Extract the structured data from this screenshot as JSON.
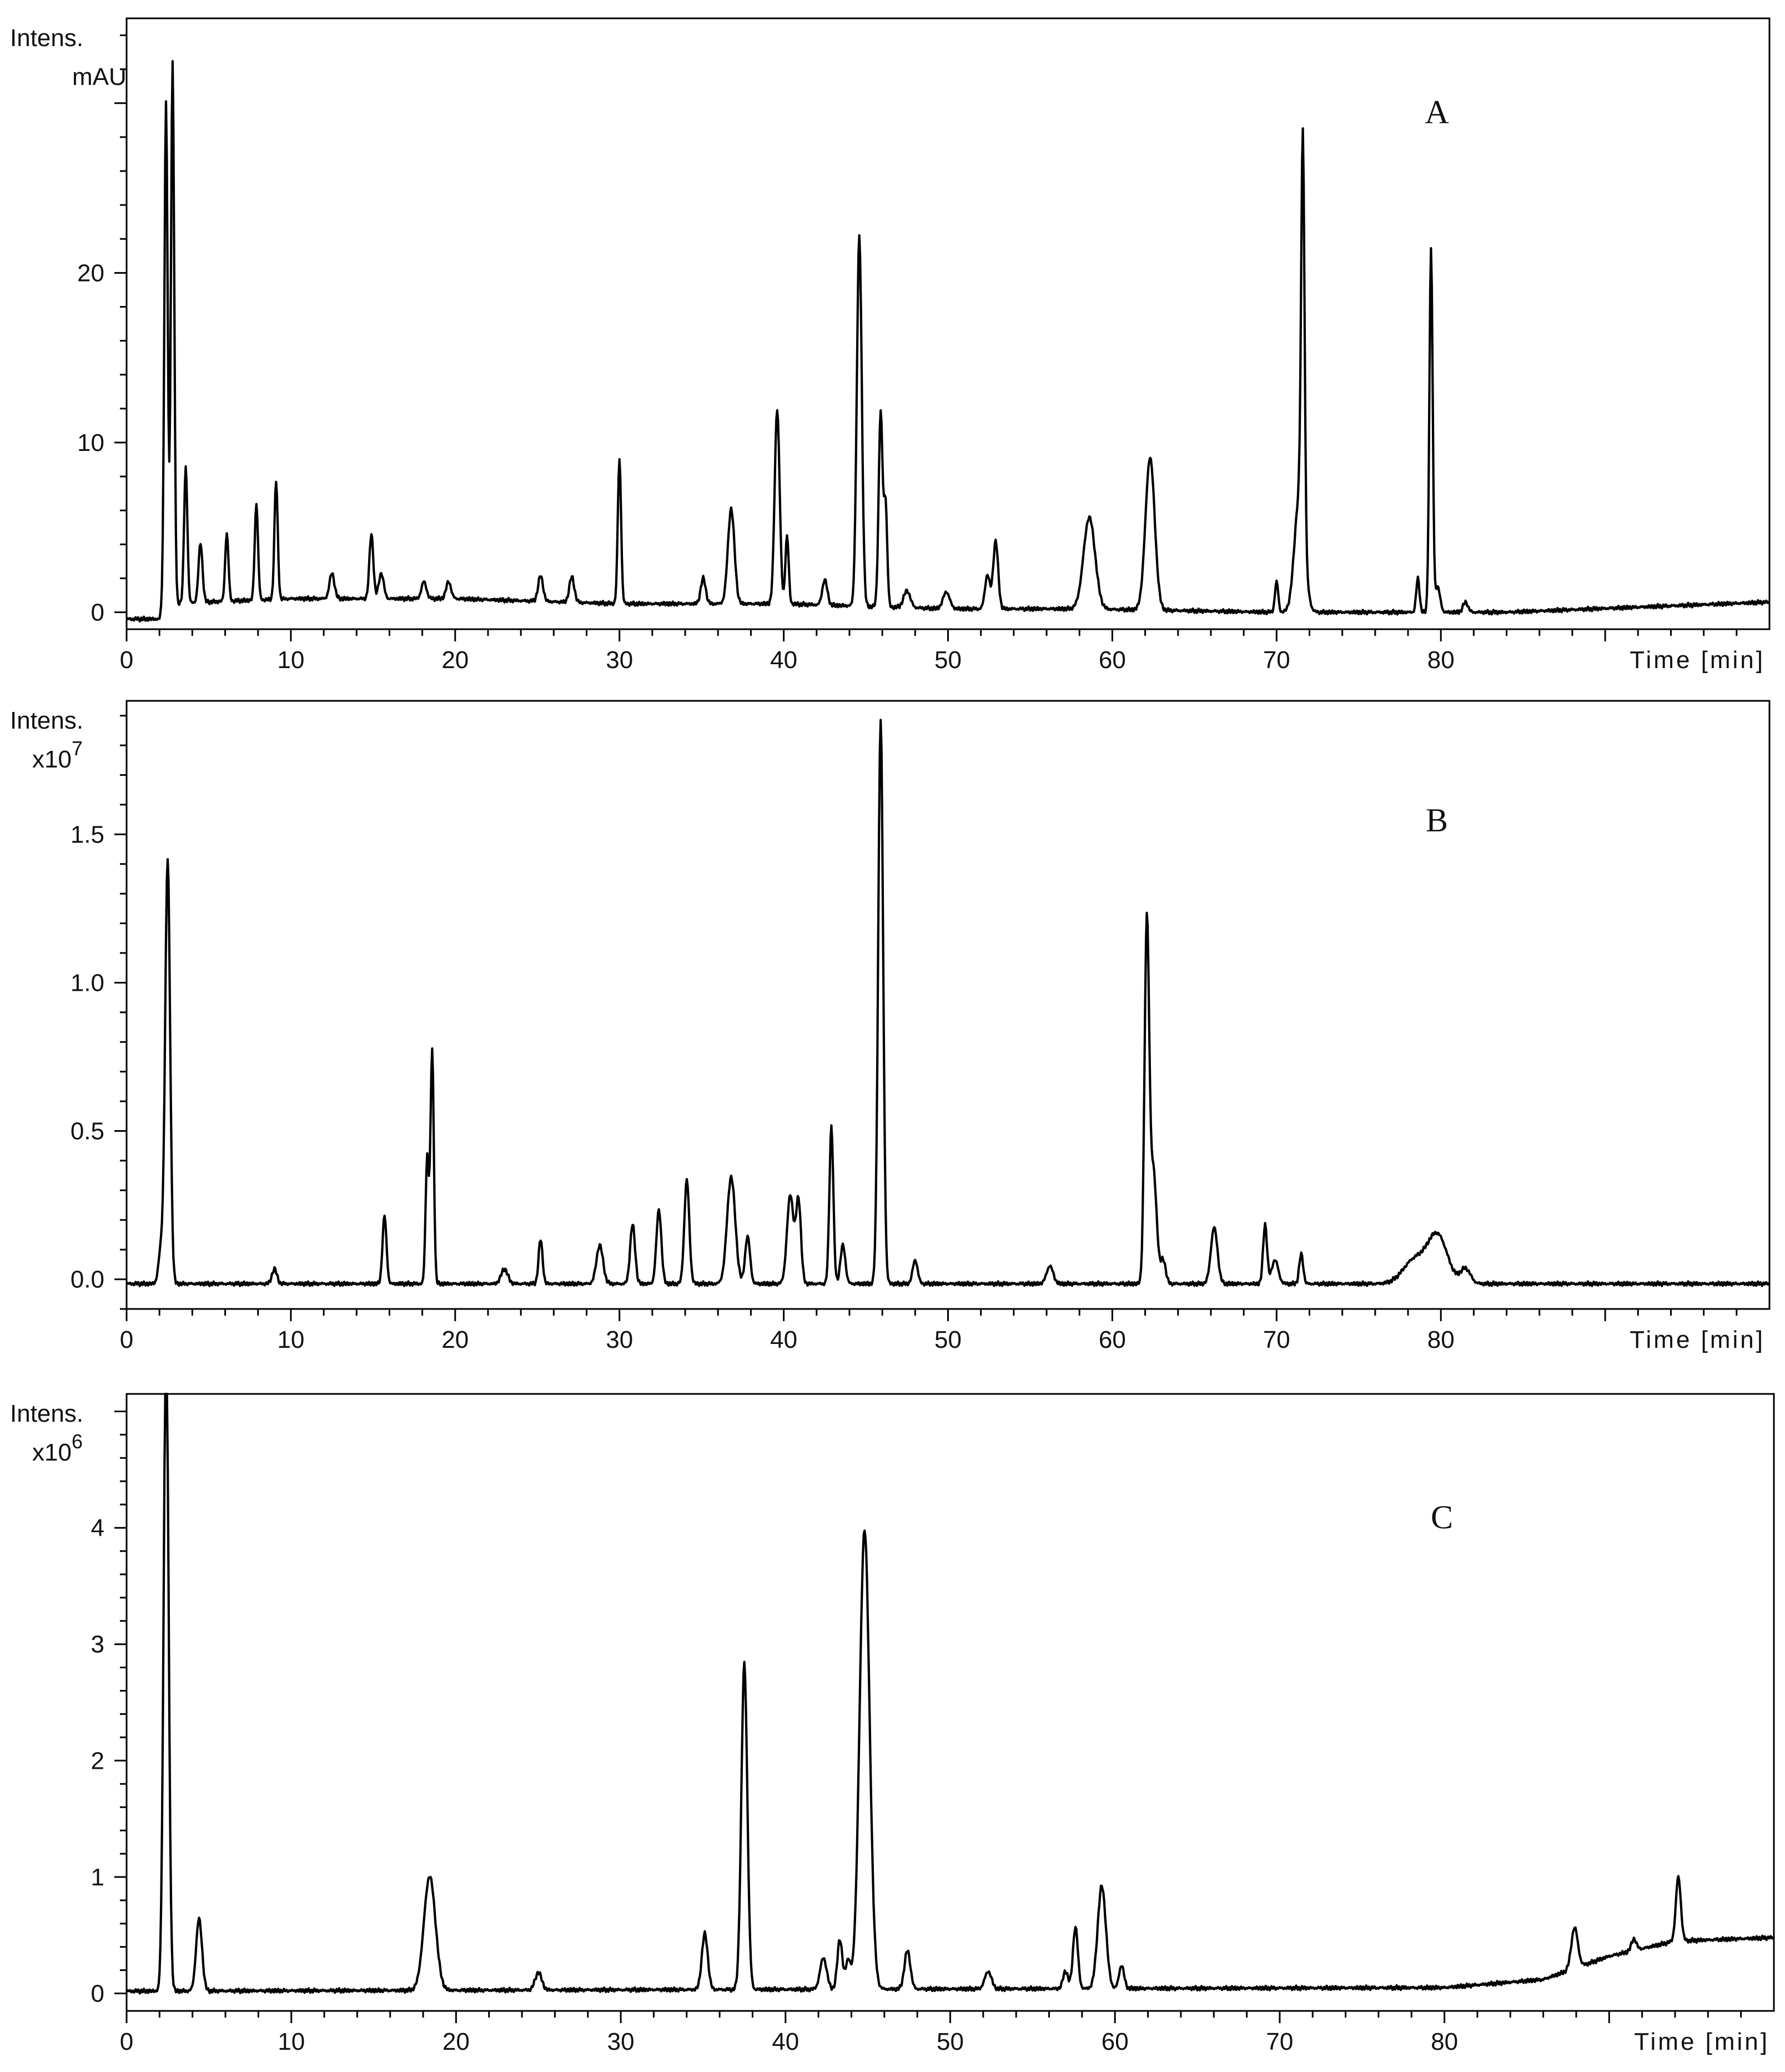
{
  "chart_data": [
    {
      "type": "line",
      "panel_label": "A",
      "ylabel_line1": "Intens.",
      "ylabel_line2": "mAU",
      "xlabel": "Time [min]",
      "xlim": [
        0,
        100
      ],
      "ylim": [
        -1,
        35
      ],
      "yticks": [
        0,
        10,
        20
      ],
      "ytick_labels": [
        "0",
        "10",
        "20"
      ],
      "xticks": [
        0,
        10,
        20,
        30,
        40,
        50,
        60,
        70,
        80
      ],
      "xtick_labels": [
        "0",
        "10",
        "20",
        "30",
        "40",
        "50",
        "60",
        "70",
        "80"
      ],
      "baseline": [
        [
          0,
          -0.4
        ],
        [
          2,
          -0.4
        ],
        [
          2.2,
          0.5
        ],
        [
          10,
          0.8
        ],
        [
          20,
          0.8
        ],
        [
          30,
          0.5
        ],
        [
          40,
          0.5
        ],
        [
          50,
          0.2
        ],
        [
          58,
          0.2
        ],
        [
          70,
          0
        ],
        [
          84,
          0
        ],
        [
          100,
          0.6
        ]
      ],
      "peaks": [
        {
          "t": 2.4,
          "h": 29.5,
          "w": 0.1
        },
        {
          "t": 2.8,
          "h": 32,
          "w": 0.1
        },
        {
          "t": 3.6,
          "h": 8,
          "w": 0.1
        },
        {
          "t": 4.5,
          "h": 3.5,
          "w": 0.12
        },
        {
          "t": 6.1,
          "h": 4,
          "w": 0.1
        },
        {
          "t": 7.9,
          "h": 5.7,
          "w": 0.1
        },
        {
          "t": 9.1,
          "h": 7,
          "w": 0.1
        },
        {
          "t": 12.5,
          "h": 1.5,
          "w": 0.15
        },
        {
          "t": 14.9,
          "h": 3.8,
          "w": 0.12
        },
        {
          "t": 15.5,
          "h": 1.5,
          "w": 0.15
        },
        {
          "t": 18.1,
          "h": 1,
          "w": 0.15
        },
        {
          "t": 19.6,
          "h": 1,
          "w": 0.15
        },
        {
          "t": 25.2,
          "h": 1.5,
          "w": 0.15
        },
        {
          "t": 27.1,
          "h": 1.5,
          "w": 0.15
        },
        {
          "t": 30,
          "h": 8.5,
          "w": 0.1
        },
        {
          "t": 35.1,
          "h": 1.5,
          "w": 0.15
        },
        {
          "t": 36.8,
          "h": 5.6,
          "w": 0.2
        },
        {
          "t": 39.6,
          "h": 11.5,
          "w": 0.15
        },
        {
          "t": 40.2,
          "h": 4,
          "w": 0.1
        },
        {
          "t": 42.5,
          "h": 1.5,
          "w": 0.15
        },
        {
          "t": 44.6,
          "h": 21.8,
          "w": 0.15
        },
        {
          "t": 45.9,
          "h": 11.5,
          "w": 0.12
        },
        {
          "t": 46.2,
          "h": 6,
          "w": 0.1
        },
        {
          "t": 47.5,
          "h": 1,
          "w": 0.2
        },
        {
          "t": 49.9,
          "h": 1,
          "w": 0.2
        },
        {
          "t": 52.4,
          "h": 2,
          "w": 0.15
        },
        {
          "t": 52.9,
          "h": 4,
          "w": 0.15
        },
        {
          "t": 58.6,
          "h": 5.4,
          "w": 0.35
        },
        {
          "t": 62.3,
          "h": 9,
          "w": 0.28
        },
        {
          "t": 70,
          "h": 1.8,
          "w": 0.1
        },
        {
          "t": 71.4,
          "h": 7,
          "w": 0.3
        },
        {
          "t": 71.6,
          "h": 23,
          "w": 0.1
        },
        {
          "t": 78.6,
          "h": 2,
          "w": 0.1
        },
        {
          "t": 79.4,
          "h": 21.5,
          "w": 0.1
        },
        {
          "t": 79.8,
          "h": 1.5,
          "w": 0.15
        },
        {
          "t": 81.5,
          "h": 0.6,
          "w": 0.15
        }
      ]
    },
    {
      "type": "line",
      "panel_label": "B",
      "ylabel_line1": "Intens.",
      "ylabel_line2": "x10",
      "ylabel_exponent": "7",
      "xlabel": "Time [min]",
      "xlim": [
        0,
        100
      ],
      "ylim": [
        -0.1,
        1.95
      ],
      "yticks": [
        0,
        0.5,
        1.0,
        1.5
      ],
      "ytick_labels": [
        "0.0",
        "0.5",
        "1.0",
        "1.5"
      ],
      "xticks": [
        0,
        10,
        20,
        30,
        40,
        50,
        60,
        70,
        80
      ],
      "xtick_labels": [
        "0",
        "10",
        "20",
        "30",
        "40",
        "50",
        "60",
        "70",
        "80"
      ],
      "baseline": [
        [
          0,
          -0.015
        ],
        [
          100,
          -0.015
        ]
      ],
      "peaks": [
        {
          "t": 2.1,
          "h": 0.12,
          "w": 0.15
        },
        {
          "t": 2.5,
          "h": 1.43,
          "w": 0.15
        },
        {
          "t": 9,
          "h": 0.05,
          "w": 0.15
        },
        {
          "t": 15.7,
          "h": 0.23,
          "w": 0.12
        },
        {
          "t": 18.3,
          "h": 0.43,
          "w": 0.1
        },
        {
          "t": 18.6,
          "h": 0.79,
          "w": 0.1
        },
        {
          "t": 23,
          "h": 0.05,
          "w": 0.2
        },
        {
          "t": 25.2,
          "h": 0.15,
          "w": 0.12
        },
        {
          "t": 28.8,
          "h": 0.13,
          "w": 0.2
        },
        {
          "t": 30.8,
          "h": 0.2,
          "w": 0.15
        },
        {
          "t": 32.4,
          "h": 0.25,
          "w": 0.15
        },
        {
          "t": 34.1,
          "h": 0.35,
          "w": 0.15
        },
        {
          "t": 36.8,
          "h": 0.36,
          "w": 0.25
        },
        {
          "t": 37.8,
          "h": 0.16,
          "w": 0.15
        },
        {
          "t": 40.4,
          "h": 0.3,
          "w": 0.2
        },
        {
          "t": 40.9,
          "h": 0.28,
          "w": 0.15
        },
        {
          "t": 42.9,
          "h": 0.53,
          "w": 0.12
        },
        {
          "t": 43.6,
          "h": 0.13,
          "w": 0.15
        },
        {
          "t": 45.9,
          "h": 1.9,
          "w": 0.15
        },
        {
          "t": 48,
          "h": 0.08,
          "w": 0.15
        },
        {
          "t": 56.2,
          "h": 0.06,
          "w": 0.2
        },
        {
          "t": 62.1,
          "h": 1.2,
          "w": 0.14
        },
        {
          "t": 62.5,
          "h": 0.38,
          "w": 0.2
        },
        {
          "t": 63.1,
          "h": 0.08,
          "w": 0.15
        },
        {
          "t": 66.2,
          "h": 0.19,
          "w": 0.2
        },
        {
          "t": 69.3,
          "h": 0.2,
          "w": 0.12
        },
        {
          "t": 69.9,
          "h": 0.08,
          "w": 0.2
        },
        {
          "t": 71.5,
          "h": 0.1,
          "w": 0.12
        },
        {
          "t": 78.4,
          "h": 0.08,
          "w": 0.7
        },
        {
          "t": 79.8,
          "h": 0.16,
          "w": 0.6
        },
        {
          "t": 81.5,
          "h": 0.05,
          "w": 0.3
        }
      ]
    },
    {
      "type": "line",
      "panel_label": "C",
      "ylabel_line1": "Intens.",
      "ylabel_line2": "x10",
      "ylabel_exponent": "6",
      "xlabel": "Time [min]",
      "xlim": [
        0,
        100
      ],
      "ylim": [
        -0.15,
        5.15
      ],
      "yticks": [
        0,
        1,
        2,
        3,
        4
      ],
      "ytick_labels": [
        "0",
        "1",
        "2",
        "3",
        "4"
      ],
      "xticks": [
        0,
        10,
        20,
        30,
        40,
        50,
        60,
        70,
        80
      ],
      "xtick_labels": [
        "0",
        "10",
        "20",
        "30",
        "40",
        "50",
        "60",
        "70",
        "80"
      ],
      "baseline": [
        [
          0,
          0.02
        ],
        [
          80,
          0.05
        ],
        [
          86,
          0.12
        ],
        [
          90,
          0.32
        ],
        [
          94,
          0.45
        ],
        [
          100,
          0.48
        ]
      ],
      "peaks": [
        {
          "t": 2.4,
          "h": 5.6,
          "w": 0.15
        },
        {
          "t": 4.4,
          "h": 0.62,
          "w": 0.18
        },
        {
          "t": 18.4,
          "h": 0.98,
          "w": 0.35
        },
        {
          "t": 25,
          "h": 0.15,
          "w": 0.2
        },
        {
          "t": 35.1,
          "h": 0.48,
          "w": 0.18
        },
        {
          "t": 37.5,
          "h": 2.8,
          "w": 0.18
        },
        {
          "t": 42.3,
          "h": 0.27,
          "w": 0.2
        },
        {
          "t": 43.3,
          "h": 0.43,
          "w": 0.15
        },
        {
          "t": 43.8,
          "h": 0.25,
          "w": 0.15
        },
        {
          "t": 44.8,
          "h": 3.95,
          "w": 0.3
        },
        {
          "t": 47.4,
          "h": 0.33,
          "w": 0.18
        },
        {
          "t": 52.3,
          "h": 0.15,
          "w": 0.2
        },
        {
          "t": 57,
          "h": 0.15,
          "w": 0.15
        },
        {
          "t": 57.6,
          "h": 0.53,
          "w": 0.15
        },
        {
          "t": 59.2,
          "h": 0.88,
          "w": 0.25
        },
        {
          "t": 60.4,
          "h": 0.2,
          "w": 0.15
        },
        {
          "t": 87.9,
          "h": 0.35,
          "w": 0.2
        },
        {
          "t": 91.5,
          "h": 0.1,
          "w": 0.15
        },
        {
          "t": 94.2,
          "h": 0.55,
          "w": 0.15
        }
      ]
    }
  ]
}
